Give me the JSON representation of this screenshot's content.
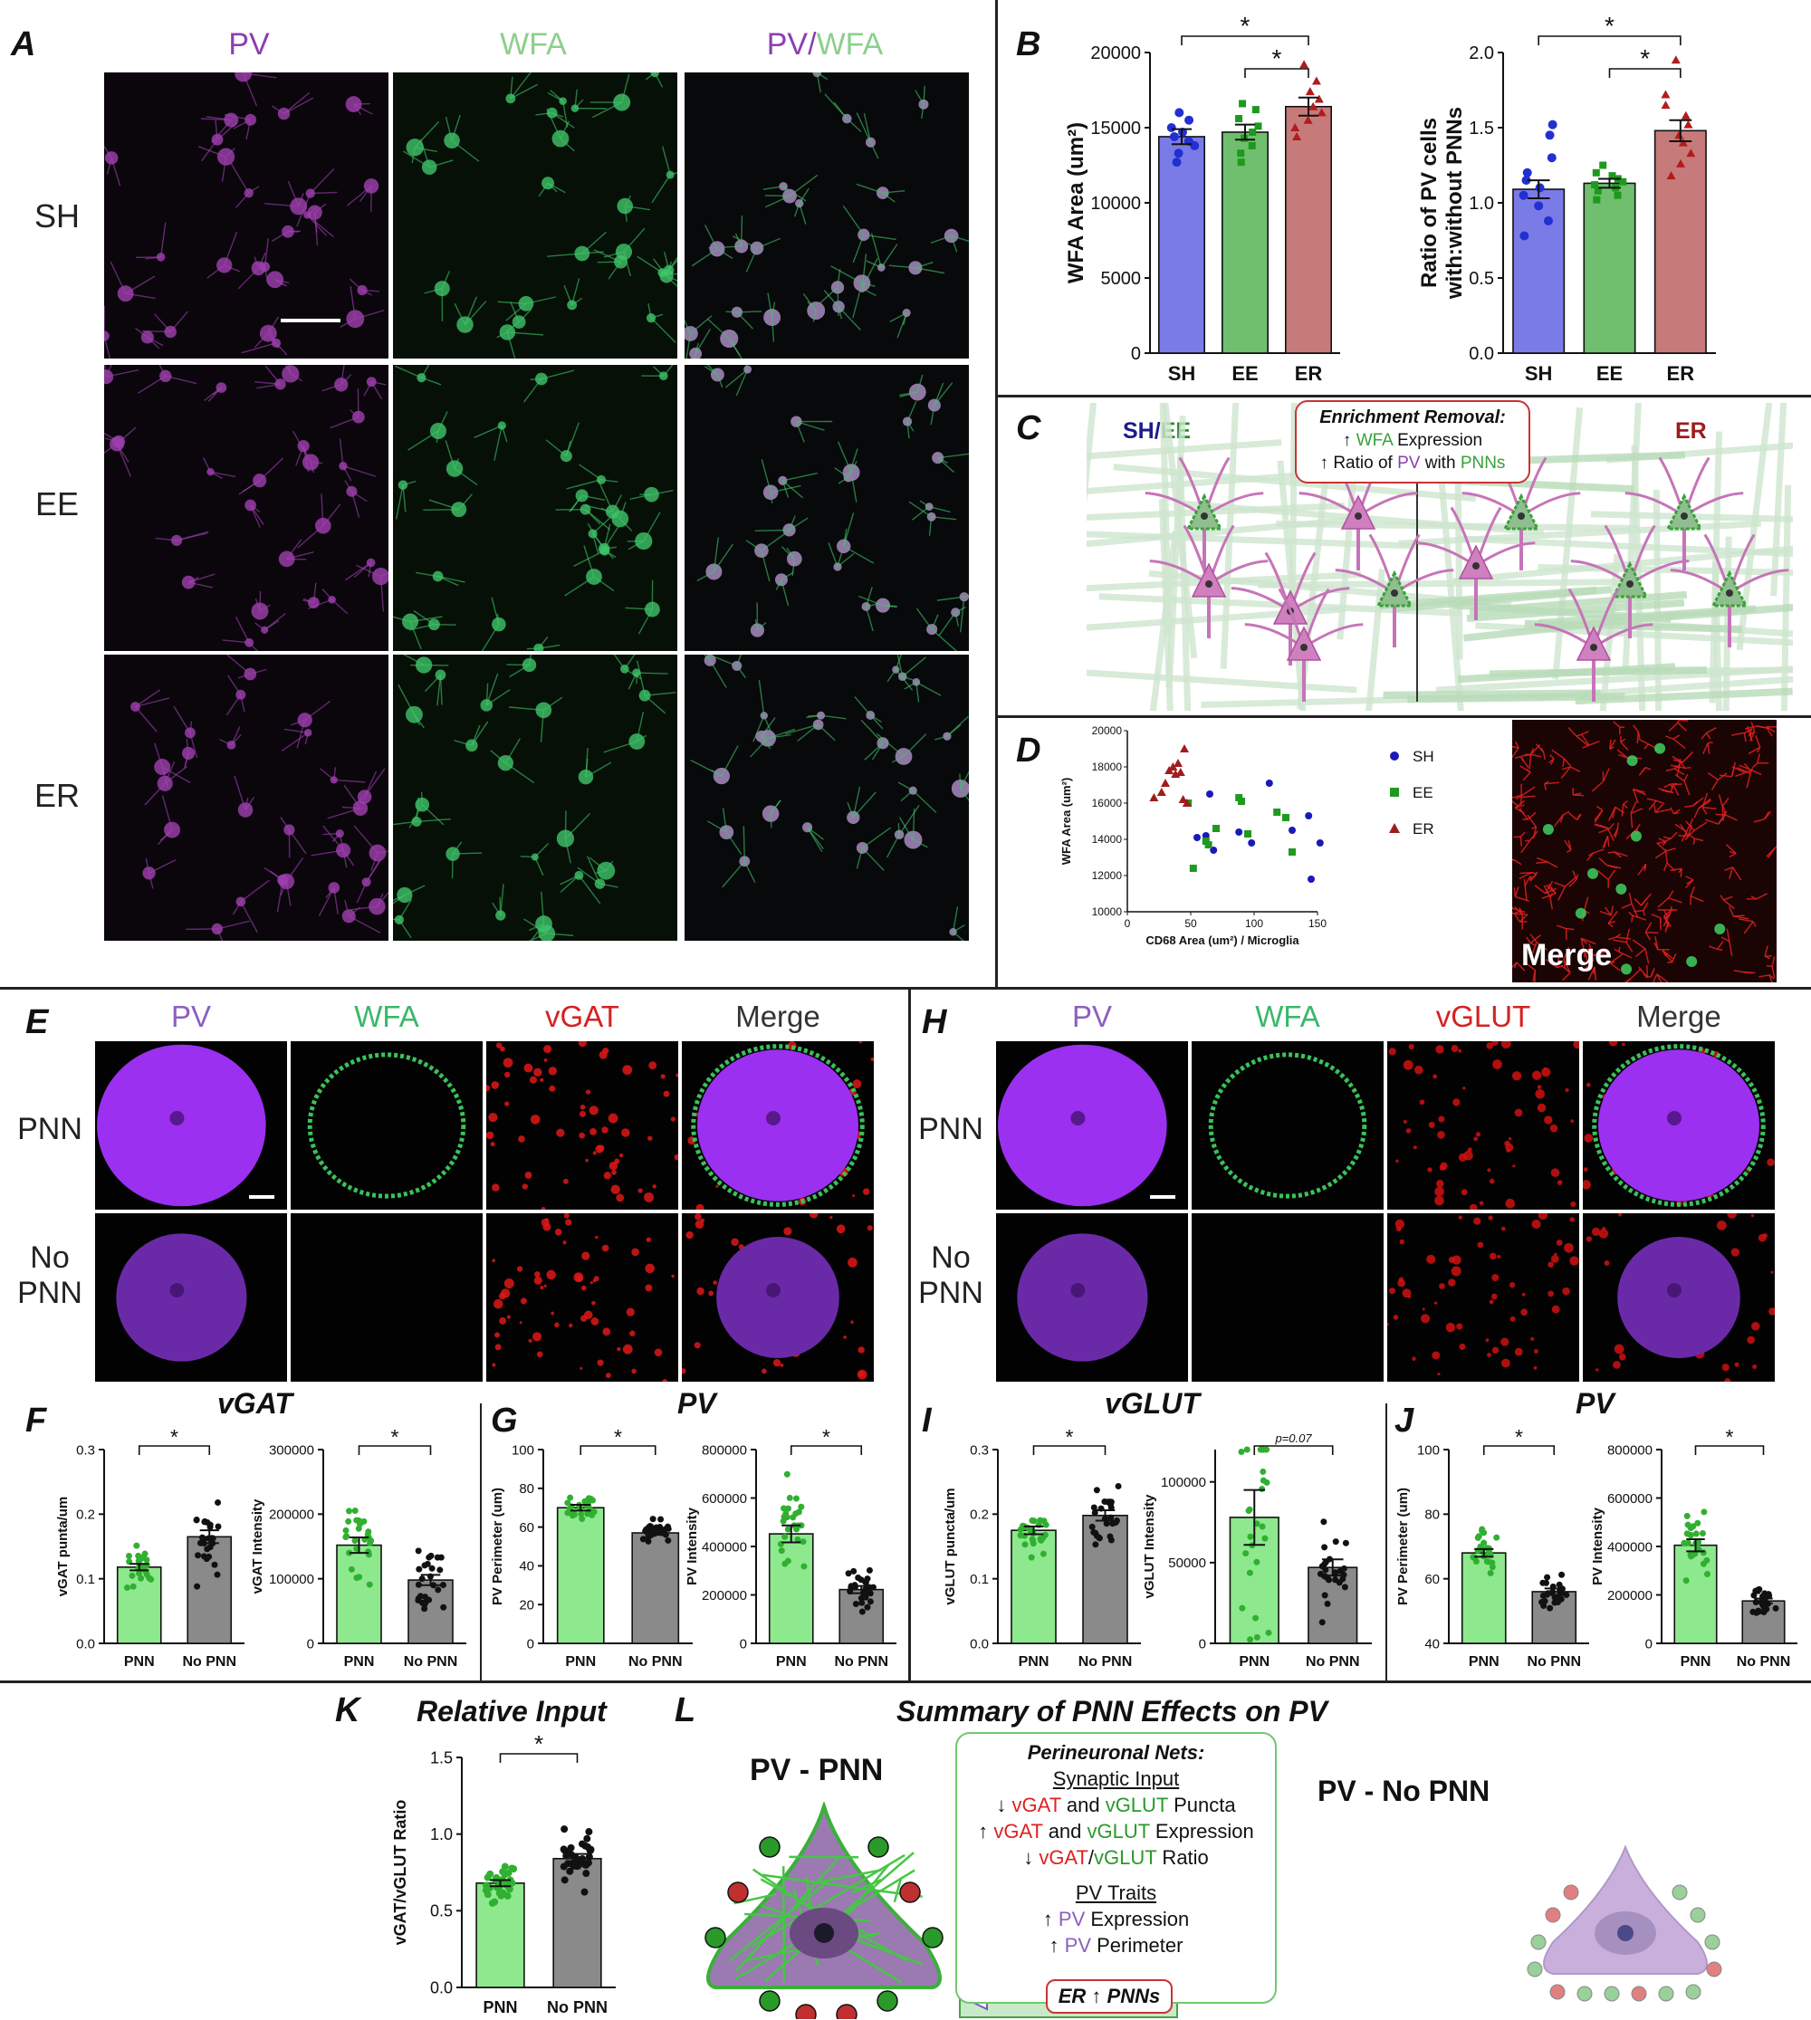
{
  "panelA": {
    "label": "A",
    "cols": [
      {
        "text": "PV",
        "color": "#8b3fb0"
      },
      {
        "text": "WFA",
        "color": "#8ccf8c"
      }
    ],
    "merge_col": {
      "a": "PV",
      "sep": "/",
      "b": "WFA"
    },
    "rows": [
      "SH",
      "EE",
      "ER"
    ]
  },
  "panelB": {
    "label": "B"
  },
  "panelC": {
    "label": "C",
    "left_a": "SH",
    "left_sep": "/",
    "left_b": "EE",
    "right": "ER",
    "box_title": "Enrichment Removal:",
    "box_line1_pre": "↑ ",
    "box_line1_color": "WFA",
    "box_line1_post": " Expression",
    "box_line2_pre": "↑ Ratio of ",
    "box_line2_pv": "PV",
    "box_line2_mid": " with ",
    "box_line2_pnn": "PNNs"
  },
  "panelD": {
    "label": "D",
    "merge": "Merge"
  },
  "panelE": {
    "label": "E",
    "cols": [
      "PV",
      "WFA",
      "vGAT",
      "Merge"
    ],
    "rows": [
      "PNN",
      "No\nPNN"
    ]
  },
  "panelH": {
    "label": "H",
    "cols": [
      "PV",
      "WFA",
      "vGLUT",
      "Merge"
    ],
    "rows": [
      "PNN",
      "No\nPNN"
    ]
  },
  "panelF": {
    "label": "F",
    "title": "vGAT"
  },
  "panelG": {
    "label": "G",
    "title": "PV"
  },
  "panelI": {
    "label": "I",
    "title": "vGLUT"
  },
  "panelJ": {
    "label": "J",
    "title": "PV"
  },
  "panelK": {
    "label": "K",
    "title": "Relative Input"
  },
  "panelL": {
    "label": "L",
    "title": "Summary of PNN Effects on PV",
    "pnn": "PV - PNN",
    "nopnn": "PV - No PNN",
    "box_title": "Perineuronal Nets:",
    "sub1": "Synaptic Input",
    "line1": [
      "↓ ",
      "vGAT",
      " and ",
      "vGLUT",
      " Puncta"
    ],
    "line2": [
      "↑ ",
      "vGAT",
      " and ",
      "vGLUT",
      " Expression"
    ],
    "line3": [
      "↓ ",
      "vGAT",
      "/",
      "vGLUT",
      " Ratio"
    ],
    "sub2": "PV Traits",
    "line4": [
      "↑ ",
      "PV",
      " Expression"
    ],
    "line5": [
      "↑ ",
      "PV",
      " Perimeter"
    ],
    "er": "ER ↑ PNNs"
  },
  "chart_data": [
    {
      "id": "B1",
      "type": "bar",
      "categories": [
        "SH",
        "EE",
        "ER"
      ],
      "values": [
        14400,
        14700,
        16400
      ],
      "errors": [
        500,
        500,
        600
      ],
      "ylabel": "WFA Area (um²)",
      "ylim": [
        0,
        20000
      ],
      "yticks": [
        0,
        5000,
        10000,
        15000,
        20000
      ],
      "colors": [
        "#7b7be8",
        "#6fbf6f",
        "#c77a7a"
      ],
      "sig": [
        {
          "from": 0,
          "to": 2,
          "label": "*"
        },
        {
          "from": 1,
          "to": 2,
          "label": "*"
        }
      ],
      "points": [
        [
          12700,
          13300,
          13800,
          14100,
          14400,
          14700,
          15000,
          15500,
          16000
        ],
        [
          12700,
          13300,
          13800,
          14300,
          14700,
          15100,
          15600,
          16200,
          16600
        ],
        [
          14400,
          15000,
          15500,
          16000,
          16400,
          16900,
          17400,
          18100,
          19200
        ]
      ]
    },
    {
      "id": "B2",
      "type": "bar",
      "categories": [
        "SH",
        "EE",
        "ER"
      ],
      "values": [
        1.09,
        1.13,
        1.48
      ],
      "errors": [
        0.06,
        0.03,
        0.07
      ],
      "ylabel": "Ratio of PV cells\nwith:without PNNs",
      "ylim": [
        0,
        2.0
      ],
      "yticks": [
        "0.0",
        "0.5",
        "1.0",
        "1.5",
        "2.0"
      ],
      "colors": [
        "#7b7be8",
        "#6fbf6f",
        "#c77a7a"
      ],
      "sig": [
        {
          "from": 0,
          "to": 2,
          "label": "*"
        },
        {
          "from": 1,
          "to": 2,
          "label": "*"
        }
      ],
      "points": [
        [
          0.78,
          0.88,
          0.98,
          1.05,
          1.1,
          1.15,
          1.2,
          1.3,
          1.45,
          1.52
        ],
        [
          1.02,
          1.05,
          1.08,
          1.1,
          1.12,
          1.14,
          1.16,
          1.18,
          1.2,
          1.25
        ],
        [
          1.18,
          1.26,
          1.33,
          1.4,
          1.45,
          1.52,
          1.58,
          1.65,
          1.72,
          1.95
        ]
      ]
    },
    {
      "id": "D",
      "type": "scatter",
      "xlabel": "CD68 Area (um²) / Microglia",
      "ylabel": "WFA Area (um²)",
      "xlim": [
        0,
        150
      ],
      "ylim": [
        10000,
        20000
      ],
      "xticks": [
        0,
        50,
        100,
        150
      ],
      "yticks": [
        10000,
        12000,
        14000,
        16000,
        18000,
        20000
      ],
      "series": [
        {
          "name": "SH",
          "color": "#1a1ab8",
          "marker": "circle",
          "points": [
            [
              55,
              14100
            ],
            [
              62,
              14200
            ],
            [
              65,
              16500
            ],
            [
              68,
              13400
            ],
            [
              88,
              14400
            ],
            [
              98,
              13800
            ],
            [
              112,
              17100
            ],
            [
              130,
              14500
            ],
            [
              143,
              15300
            ],
            [
              145,
              11800
            ],
            [
              152,
              13800
            ]
          ]
        },
        {
          "name": "EE",
          "color": "#1f9a1f",
          "marker": "square",
          "points": [
            [
              48,
              16000
            ],
            [
              52,
              12400
            ],
            [
              62,
              13900
            ],
            [
              64,
              13700
            ],
            [
              70,
              14600
            ],
            [
              88,
              16300
            ],
            [
              90,
              16100
            ],
            [
              95,
              14300
            ],
            [
              118,
              15500
            ],
            [
              125,
              15200
            ],
            [
              130,
              13300
            ]
          ]
        },
        {
          "name": "ER",
          "color": "#a01c1c",
          "marker": "triangle",
          "points": [
            [
              21,
              16300
            ],
            [
              27,
              16600
            ],
            [
              30,
              17100
            ],
            [
              33,
              17800
            ],
            [
              36,
              18000
            ],
            [
              38,
              17600
            ],
            [
              40,
              18200
            ],
            [
              42,
              17700
            ],
            [
              44,
              16200
            ],
            [
              45,
              19000
            ],
            [
              47,
              16000
            ]
          ]
        }
      ]
    },
    {
      "id": "F1",
      "type": "bar",
      "categories": [
        "PNN",
        "No PNN"
      ],
      "values": [
        0.118,
        0.165
      ],
      "errors": [
        0.005,
        0.01
      ],
      "ylabel": "vGAT punta/um",
      "ylim": [
        0,
        0.3
      ],
      "yticks": [
        "0.0",
        "0.1",
        "0.2",
        "0.3"
      ],
      "colors": [
        "#8ee88e",
        "#8a8a8a"
      ],
      "sig": [
        {
          "from": 0,
          "to": 1,
          "label": "*"
        }
      ]
    },
    {
      "id": "F2",
      "type": "bar",
      "categories": [
        "PNN",
        "No PNN"
      ],
      "values": [
        152000,
        98000
      ],
      "errors": [
        12000,
        8000
      ],
      "ylabel": "vGAT Intensity",
      "ylim": [
        0,
        300000
      ],
      "yticks": [
        "0",
        "100000",
        "200000",
        "300000"
      ],
      "colors": [
        "#8ee88e",
        "#8a8a8a"
      ],
      "sig": [
        {
          "from": 0,
          "to": 1,
          "label": "*"
        }
      ]
    },
    {
      "id": "G1",
      "type": "bar",
      "categories": [
        "PNN",
        "No PNN"
      ],
      "values": [
        70,
        57
      ],
      "errors": [
        1.5,
        1.0
      ],
      "ylabel": "PV Perimeter (um)",
      "ylim": [
        0,
        100
      ],
      "yticks": [
        "0",
        "20",
        "40",
        "60",
        "80",
        "100"
      ],
      "colors": [
        "#8ee88e",
        "#8a8a8a"
      ],
      "sig": [
        {
          "from": 0,
          "to": 1,
          "label": "*"
        }
      ]
    },
    {
      "id": "G2",
      "type": "bar",
      "categories": [
        "PNN",
        "No PNN"
      ],
      "values": [
        452000,
        222000
      ],
      "errors": [
        35000,
        15000
      ],
      "ylabel": "PV Intensity",
      "ylim": [
        0,
        800000
      ],
      "yticks": [
        "0",
        "200000",
        "400000",
        "600000",
        "800000"
      ],
      "colors": [
        "#8ee88e",
        "#8a8a8a"
      ],
      "sig": [
        {
          "from": 0,
          "to": 1,
          "label": "*"
        }
      ]
    },
    {
      "id": "I1",
      "type": "bar",
      "categories": [
        "PNN",
        "No PNN"
      ],
      "values": [
        0.175,
        0.198
      ],
      "errors": [
        0.006,
        0.008
      ],
      "ylabel": "vGLUT puncta/um",
      "ylim": [
        0,
        0.3
      ],
      "yticks": [
        "0.0",
        "0.1",
        "0.2",
        "0.3"
      ],
      "colors": [
        "#8ee88e",
        "#8a8a8a"
      ],
      "sig": [
        {
          "from": 0,
          "to": 1,
          "label": "*"
        }
      ]
    },
    {
      "id": "I2",
      "type": "bar",
      "categories": [
        "PNN",
        "No PNN"
      ],
      "values": [
        78000,
        47000
      ],
      "errors": [
        17000,
        5000
      ],
      "ylabel": "vGLUT Intensity",
      "ylim": [
        0,
        120000
      ],
      "yticks": [
        "0",
        "50000",
        "100000"
      ],
      "colors": [
        "#8ee88e",
        "#8a8a8a"
      ],
      "sig": [
        {
          "from": 0,
          "to": 1,
          "label": "p=0.07"
        }
      ]
    },
    {
      "id": "J1",
      "type": "bar",
      "categories": [
        "PNN",
        "No PNN"
      ],
      "values": [
        68,
        56
      ],
      "errors": [
        1.2,
        1.0
      ],
      "ylabel": "PV Perimeter (um)",
      "ylim": [
        40,
        100
      ],
      "yticks": [
        "40",
        "60",
        "80",
        "100"
      ],
      "colors": [
        "#8ee88e",
        "#8a8a8a"
      ],
      "sig": [
        {
          "from": 0,
          "to": 1,
          "label": "*"
        }
      ]
    },
    {
      "id": "J2",
      "type": "bar",
      "categories": [
        "PNN",
        "No PNN"
      ],
      "values": [
        405000,
        175000
      ],
      "errors": [
        25000,
        10000
      ],
      "ylabel": "PV Intensity",
      "ylim": [
        0,
        800000
      ],
      "yticks": [
        "0",
        "200000",
        "400000",
        "600000",
        "800000"
      ],
      "colors": [
        "#8ee88e",
        "#8a8a8a"
      ],
      "sig": [
        {
          "from": 0,
          "to": 1,
          "label": "*"
        }
      ]
    },
    {
      "id": "K",
      "type": "bar",
      "categories": [
        "PNN",
        "No PNN"
      ],
      "values": [
        0.68,
        0.84
      ],
      "errors": [
        0.02,
        0.03
      ],
      "ylabel": "vGAT/vGLUT Ratio",
      "ylim": [
        0,
        1.5
      ],
      "yticks": [
        "0.0",
        "0.5",
        "1.0",
        "1.5"
      ],
      "colors": [
        "#8ee88e",
        "#8a8a8a"
      ],
      "sig": [
        {
          "from": 0,
          "to": 1,
          "label": "*"
        }
      ]
    }
  ]
}
